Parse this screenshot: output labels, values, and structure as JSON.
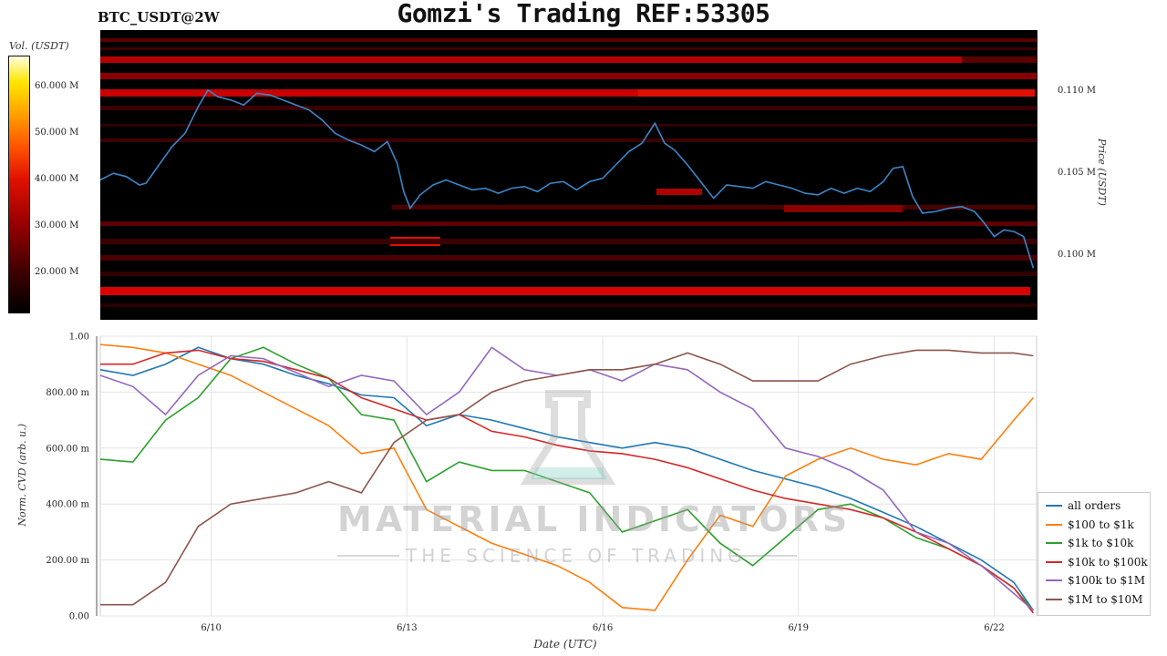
{
  "header": {
    "symbol": "BTC_USDT@2W",
    "title": "Gomzi's Trading REF:53305"
  },
  "colors": {
    "all_orders": "#1f77b4",
    "usd_100_1k": "#ff7f0e",
    "usd_1k_10k": "#2ca02c",
    "usd_10k_100k": "#d62728",
    "usd_100k_1m": "#9467bd",
    "usd_1m_10m": "#8c564b",
    "price_line": "#3a86c8"
  },
  "watermark": {
    "line1": "MATERIAL INDICATORS",
    "line2": "THE SCIENCE OF TRADING"
  },
  "chart_data": [
    {
      "type": "heatmap",
      "colorbar_label": "Vol. (USDT)",
      "colorbar_ticks": [
        "20.000 M",
        "30.000 M",
        "40.000 M",
        "50.000 M",
        "60.000 M"
      ],
      "ylabel": "Price (USDT)",
      "price_ticks": [
        "0.100 M",
        "0.105 M",
        "0.110 M"
      ],
      "ylim": [
        96400,
        113800
      ],
      "price_series": {
        "name": "",
        "x": [
          8.3,
          8.5,
          8.7,
          8.9,
          9.0,
          9.2,
          9.4,
          9.6,
          9.8,
          9.95,
          10.1,
          10.3,
          10.5,
          10.7,
          10.9,
          11.1,
          11.3,
          11.5,
          11.7,
          11.9,
          12.1,
          12.3,
          12.5,
          12.7,
          12.85,
          12.95,
          13.05,
          13.2,
          13.4,
          13.6,
          13.8,
          14.0,
          14.2,
          14.4,
          14.6,
          14.8,
          15.0,
          15.2,
          15.4,
          15.6,
          15.8,
          16.0,
          16.2,
          16.4,
          16.6,
          16.8,
          16.95,
          17.1,
          17.3,
          17.5,
          17.7,
          17.9,
          18.1,
          18.3,
          18.5,
          18.7,
          18.9,
          19.1,
          19.3,
          19.5,
          19.7,
          19.9,
          20.1,
          20.3,
          20.45,
          20.6,
          20.75,
          20.9,
          21.1,
          21.3,
          21.5,
          21.7,
          21.85,
          22.0,
          22.15,
          22.3,
          22.45,
          22.6
        ],
        "y": [
          104800,
          105200,
          105000,
          104500,
          104600,
          105700,
          106800,
          107600,
          109200,
          110200,
          109800,
          109600,
          109300,
          110000,
          109900,
          109600,
          109300,
          109000,
          108400,
          107600,
          107200,
          106900,
          106500,
          107100,
          105800,
          104100,
          103100,
          103900,
          104500,
          104800,
          104500,
          104200,
          104300,
          104000,
          104300,
          104400,
          104100,
          104600,
          104700,
          104200,
          104700,
          104900,
          105700,
          106500,
          107000,
          108200,
          107000,
          106600,
          105700,
          104700,
          103700,
          104500,
          104400,
          104300,
          104700,
          104500,
          104300,
          104000,
          103900,
          104300,
          104000,
          104300,
          104100,
          104700,
          105500,
          105600,
          103800,
          102800,
          102900,
          103100,
          103200,
          102900,
          102200,
          101400,
          101800,
          101700,
          101400,
          99500
        ]
      }
    },
    {
      "type": "line",
      "ylabel": "Norm. CVD (arb. u.)",
      "xlabel": "Date (UTC)",
      "xlim": [
        8.3,
        22.65
      ],
      "ylim": [
        0,
        1
      ],
      "x_ticks": [
        "6/10",
        "6/13",
        "6/16",
        "6/19",
        "6/22"
      ],
      "y_ticks": [
        "0.00",
        "200.00 m",
        "400.00 m",
        "600.00 m",
        "800.00 m",
        "1.00"
      ],
      "x": [
        8.3,
        8.8,
        9.3,
        9.8,
        10.3,
        10.8,
        11.3,
        11.8,
        12.3,
        12.8,
        13.3,
        13.8,
        14.3,
        14.8,
        15.3,
        15.8,
        16.3,
        16.8,
        17.3,
        17.8,
        18.3,
        18.8,
        19.3,
        19.8,
        20.3,
        20.8,
        21.3,
        21.8,
        22.3,
        22.6
      ],
      "series": [
        {
          "name": "all orders",
          "values": [
            0.88,
            0.86,
            0.9,
            0.96,
            0.92,
            0.9,
            0.86,
            0.83,
            0.79,
            0.78,
            0.68,
            0.72,
            0.7,
            0.67,
            0.64,
            0.62,
            0.6,
            0.62,
            0.6,
            0.56,
            0.52,
            0.49,
            0.46,
            0.42,
            0.37,
            0.32,
            0.26,
            0.2,
            0.12,
            0.02
          ]
        },
        {
          "name": "$100 to $1k",
          "values": [
            0.97,
            0.96,
            0.94,
            0.9,
            0.86,
            0.8,
            0.74,
            0.68,
            0.58,
            0.6,
            0.38,
            0.32,
            0.26,
            0.22,
            0.18,
            0.12,
            0.03,
            0.02,
            0.2,
            0.36,
            0.32,
            0.5,
            0.56,
            0.6,
            0.56,
            0.54,
            0.58,
            0.56,
            0.7,
            0.78
          ]
        },
        {
          "name": "$1k to $10k",
          "values": [
            0.56,
            0.55,
            0.7,
            0.78,
            0.92,
            0.96,
            0.9,
            0.85,
            0.72,
            0.7,
            0.48,
            0.55,
            0.52,
            0.52,
            0.48,
            0.44,
            0.3,
            0.34,
            0.38,
            0.26,
            0.18,
            0.28,
            0.38,
            0.4,
            0.35,
            0.28,
            0.24,
            0.18,
            0.1,
            0.02
          ]
        },
        {
          "name": "$10k to $100k",
          "values": [
            0.9,
            0.9,
            0.94,
            0.95,
            0.92,
            0.91,
            0.88,
            0.85,
            0.78,
            0.74,
            0.7,
            0.72,
            0.66,
            0.64,
            0.61,
            0.59,
            0.58,
            0.56,
            0.53,
            0.49,
            0.45,
            0.42,
            0.4,
            0.38,
            0.35,
            0.3,
            0.24,
            0.18,
            0.1,
            0.01
          ]
        },
        {
          "name": "$100k to $1M",
          "values": [
            0.86,
            0.82,
            0.72,
            0.86,
            0.93,
            0.92,
            0.87,
            0.82,
            0.86,
            0.84,
            0.72,
            0.8,
            0.96,
            0.88,
            0.86,
            0.88,
            0.84,
            0.9,
            0.88,
            0.8,
            0.74,
            0.6,
            0.57,
            0.52,
            0.45,
            0.3,
            0.26,
            0.18,
            0.08,
            0.02
          ]
        },
        {
          "name": "$1M to $10M",
          "values": [
            0.04,
            0.04,
            0.12,
            0.32,
            0.4,
            0.42,
            0.44,
            0.48,
            0.44,
            0.62,
            0.7,
            0.72,
            0.8,
            0.84,
            0.86,
            0.88,
            0.88,
            0.9,
            0.94,
            0.9,
            0.84,
            0.84,
            0.84,
            0.9,
            0.93,
            0.95,
            0.95,
            0.94,
            0.94,
            0.93
          ]
        }
      ]
    }
  ]
}
